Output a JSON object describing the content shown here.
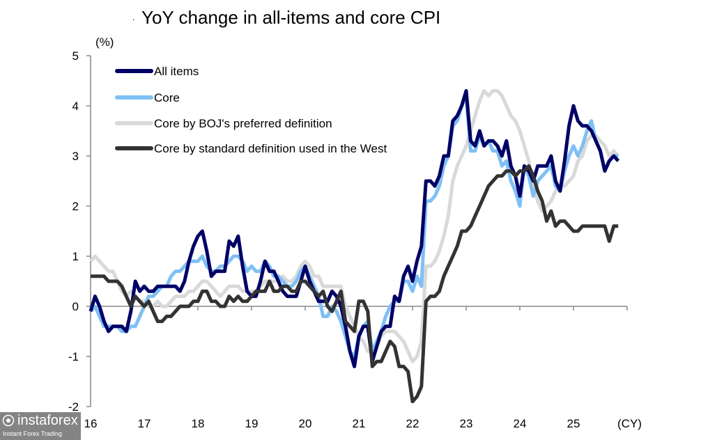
{
  "chart_data": {
    "type": "line",
    "title": "YoY change in all-items and core CPI",
    "ylabel": "(%)",
    "xlabel": "(CY)",
    "ylim": [
      -2,
      5
    ],
    "yticks": [
      "-2",
      "-1",
      "0",
      "1",
      "2",
      "3",
      "4",
      "5"
    ],
    "xlim": [
      "2016-01",
      "2026-01"
    ],
    "xtick_labels": [
      "16",
      "17",
      "18",
      "19",
      "20",
      "21",
      "22",
      "23",
      "24",
      "25"
    ],
    "x_start": "2016-01",
    "x_frequency": "monthly",
    "grid": false,
    "legend_position": "top-left",
    "series": [
      {
        "name": "All items",
        "color": "#000066",
        "values": [
          -0.1,
          0.2,
          0.0,
          -0.3,
          -0.5,
          -0.4,
          -0.4,
          -0.4,
          -0.5,
          -0.1,
          0.5,
          0.3,
          0.4,
          0.3,
          0.3,
          0.4,
          0.4,
          0.4,
          0.4,
          0.4,
          0.3,
          0.5,
          0.9,
          1.2,
          1.4,
          1.5,
          1.1,
          0.6,
          0.7,
          0.7,
          0.7,
          1.3,
          1.2,
          1.4,
          0.8,
          0.3,
          0.2,
          0.2,
          0.5,
          0.9,
          0.7,
          0.7,
          0.5,
          0.3,
          0.2,
          0.2,
          0.2,
          0.5,
          0.8,
          0.5,
          0.3,
          0.1,
          0.1,
          0.1,
          0.3,
          0.2,
          0.0,
          -0.4,
          -0.9,
          -1.2,
          -0.6,
          -0.4,
          -0.4,
          -1.1,
          -0.8,
          -0.5,
          -0.4,
          -0.4,
          0.2,
          0.1,
          0.6,
          0.8,
          0.5,
          0.9,
          1.2,
          2.5,
          2.5,
          2.4,
          2.6,
          3.0,
          3.0,
          3.7,
          3.8,
          4.0,
          4.3,
          3.3,
          3.2,
          3.5,
          3.2,
          3.3,
          3.3,
          3.2,
          3.0,
          3.3,
          2.8,
          2.6,
          2.2,
          2.8,
          2.7,
          2.5,
          2.8,
          2.8,
          2.8,
          3.0,
          2.5,
          2.3,
          2.9,
          3.6,
          4.0,
          3.7,
          3.6,
          3.6,
          3.5,
          3.3,
          3.1,
          2.7,
          2.9,
          3.0,
          2.9
        ]
      },
      {
        "name": "Core",
        "color": "#7fc0f4",
        "values": [
          -0.1,
          0.0,
          -0.2,
          -0.4,
          -0.4,
          -0.4,
          -0.4,
          -0.5,
          -0.5,
          -0.4,
          -0.4,
          -0.2,
          0.0,
          0.2,
          0.2,
          0.3,
          0.4,
          0.4,
          0.6,
          0.7,
          0.7,
          0.8,
          0.9,
          0.9,
          0.9,
          1.0,
          0.8,
          0.7,
          0.7,
          0.8,
          0.8,
          0.9,
          1.0,
          1.0,
          0.9,
          0.7,
          0.8,
          0.7,
          0.7,
          0.9,
          0.8,
          0.6,
          0.6,
          0.5,
          0.4,
          0.4,
          0.5,
          0.7,
          0.8,
          0.6,
          0.4,
          0.2,
          -0.2,
          -0.2,
          0.0,
          -0.1,
          -0.3,
          -0.6,
          -0.9,
          -1.0,
          -0.6,
          -0.4,
          -0.3,
          -0.9,
          -0.7,
          -0.5,
          -0.2,
          0.0,
          0.1,
          0.1,
          0.5,
          0.5,
          0.3,
          0.6,
          0.4,
          2.1,
          2.1,
          2.2,
          2.4,
          2.8,
          3.0,
          3.6,
          3.7,
          4.0,
          4.2,
          3.1,
          3.1,
          3.4,
          3.2,
          3.3,
          3.1,
          3.1,
          2.8,
          2.9,
          2.5,
          2.3,
          2.0,
          2.8,
          2.6,
          2.2,
          2.5,
          2.6,
          2.7,
          2.8,
          2.4,
          2.3,
          2.7,
          3.0,
          3.2,
          3.0,
          3.2,
          3.5,
          3.7,
          3.3,
          3.1,
          2.7,
          2.9,
          3.0,
          3.0
        ]
      },
      {
        "name": "Core by BOJ's preferred definition",
        "color": "#d9d9d9",
        "values": [
          0.9,
          1.0,
          0.9,
          0.8,
          0.7,
          0.7,
          0.5,
          0.3,
          0.2,
          0.3,
          0.2,
          0.1,
          0.1,
          0.0,
          0.0,
          0.1,
          0.0,
          0.0,
          0.1,
          0.2,
          0.2,
          0.2,
          0.3,
          0.3,
          0.4,
          0.5,
          0.5,
          0.4,
          0.3,
          0.2,
          0.3,
          0.4,
          0.4,
          0.4,
          0.3,
          0.3,
          0.3,
          0.3,
          0.4,
          0.5,
          0.5,
          0.5,
          0.5,
          0.6,
          0.5,
          0.5,
          0.6,
          0.8,
          0.9,
          0.8,
          0.6,
          0.6,
          0.4,
          0.4,
          0.4,
          0.4,
          0.4,
          0.0,
          -0.2,
          -0.4,
          -0.6,
          -0.7,
          -0.9,
          -0.9,
          -0.8,
          -0.6,
          -0.5,
          -0.5,
          -0.5,
          -0.6,
          -0.7,
          -0.9,
          -1.1,
          -1.0,
          -0.7,
          0.8,
          0.8,
          0.9,
          1.1,
          1.4,
          1.8,
          2.5,
          2.8,
          3.0,
          3.2,
          3.5,
          3.8,
          4.1,
          4.3,
          4.2,
          4.3,
          4.3,
          4.2,
          4.0,
          3.8,
          3.7,
          3.5,
          3.2,
          2.9,
          2.4,
          2.1,
          1.9,
          2.0,
          2.1,
          2.3,
          2.4,
          2.4,
          2.5,
          2.6,
          2.9,
          3.0,
          3.3,
          3.4,
          3.4,
          3.3,
          3.2,
          3.0,
          3.1,
          3.0
        ]
      },
      {
        "name": "Core by standard definition used in the West",
        "color": "#333333",
        "values": [
          0.6,
          0.6,
          0.6,
          0.6,
          0.5,
          0.5,
          0.5,
          0.4,
          0.2,
          0.0,
          0.2,
          0.1,
          0.0,
          0.1,
          -0.1,
          -0.3,
          -0.3,
          -0.2,
          -0.2,
          -0.1,
          0.0,
          0.0,
          0.0,
          0.1,
          0.1,
          0.3,
          0.3,
          0.1,
          0.1,
          0.0,
          0.0,
          0.2,
          0.1,
          0.2,
          0.1,
          0.1,
          0.2,
          0.3,
          0.3,
          0.3,
          0.5,
          0.3,
          0.3,
          0.4,
          0.4,
          0.3,
          0.3,
          0.5,
          0.5,
          0.4,
          0.3,
          0.2,
          0.3,
          0.0,
          -0.1,
          0.1,
          0.3,
          -0.3,
          -0.4,
          -0.5,
          0.1,
          0.1,
          -0.1,
          -1.2,
          -1.1,
          -1.1,
          -0.9,
          -0.7,
          -0.8,
          -1.2,
          -1.2,
          -1.3,
          -1.9,
          -1.8,
          -1.6,
          0.1,
          0.2,
          0.2,
          0.3,
          0.6,
          0.8,
          1.0,
          1.2,
          1.5,
          1.5,
          1.6,
          1.8,
          2.0,
          2.2,
          2.4,
          2.5,
          2.6,
          2.6,
          2.7,
          2.7,
          2.6,
          2.7,
          2.7,
          2.8,
          2.6,
          2.3,
          2.1,
          1.7,
          1.9,
          1.6,
          1.7,
          1.7,
          1.6,
          1.5,
          1.5,
          1.6,
          1.6,
          1.6,
          1.6,
          1.6,
          1.6,
          1.3,
          1.6,
          1.6
        ]
      }
    ]
  },
  "watermark": {
    "logo": "instaforex",
    "tagline": "Instant Forex Trading"
  }
}
